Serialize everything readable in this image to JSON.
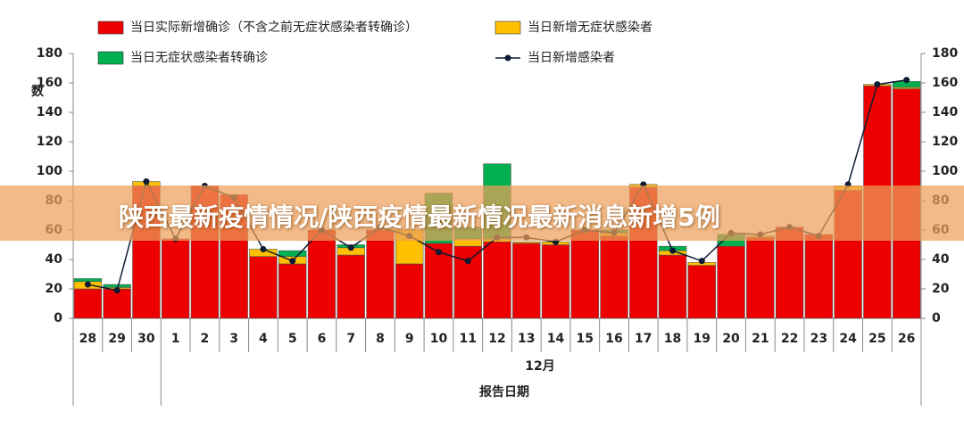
{
  "chart_data": {
    "type": "stacked-bar-line",
    "y_label": "数",
    "x_group_label": "12月",
    "x_label": "报告日期",
    "categories": [
      "28",
      "29",
      "30",
      "1",
      "2",
      "3",
      "4",
      "5",
      "6",
      "7",
      "8",
      "9",
      "10",
      "11",
      "12",
      "13",
      "14",
      "15",
      "16",
      "17",
      "18",
      "19",
      "20",
      "21",
      "22",
      "23",
      "24",
      "25",
      "26"
    ],
    "series": [
      {
        "name": "当日实际新增确诊（不含之前无症状感染者转确诊）",
        "color": "#ee0000",
        "kind": "bar",
        "values": [
          20,
          20,
          90,
          54,
          90,
          84,
          42,
          37,
          60,
          43,
          60,
          37,
          51,
          49,
          52,
          51,
          50,
          60,
          56,
          89,
          43,
          36,
          49,
          55,
          62,
          57,
          87,
          158,
          156
        ]
      },
      {
        "name": "当日新增无症状感染者",
        "color": "#ffc000",
        "kind": "bar",
        "values": [
          5,
          1,
          3,
          0,
          0,
          0,
          5,
          5,
          0,
          5,
          0,
          23,
          0,
          5,
          2,
          1,
          2,
          0,
          2,
          2,
          3,
          2,
          0,
          1,
          0,
          0,
          3,
          1,
          1
        ]
      },
      {
        "name": "当日无症状感染者转确诊",
        "color": "#00b050",
        "kind": "bar",
        "values": [
          2,
          2,
          0,
          0,
          0,
          0,
          0,
          4,
          0,
          2,
          0,
          0,
          34,
          8,
          51,
          0,
          0,
          0,
          2,
          0,
          3,
          0,
          8,
          0,
          0,
          0,
          0,
          0,
          4
        ]
      },
      {
        "name": "当日新增感染者",
        "color": "#0d1a33",
        "kind": "line",
        "axis": "y2",
        "values": [
          23,
          19,
          93,
          54,
          90,
          82,
          47,
          39,
          60,
          48,
          62,
          56,
          45,
          39,
          55,
          55,
          52,
          60,
          58,
          91,
          46,
          39,
          58,
          57,
          62,
          56,
          91,
          159,
          162
        ]
      }
    ],
    "ylim": [
      0,
      180
    ],
    "yticks": [
      0,
      20,
      40,
      60,
      80,
      100,
      120,
      140,
      160,
      180
    ],
    "y2lim": [
      0,
      180
    ],
    "y2ticks": [
      0,
      20,
      40,
      60,
      80,
      100,
      120,
      140,
      160,
      180
    ]
  },
  "banner": "陕西最新疫情情况/陕西疫情最新情况最新消息新增5例"
}
